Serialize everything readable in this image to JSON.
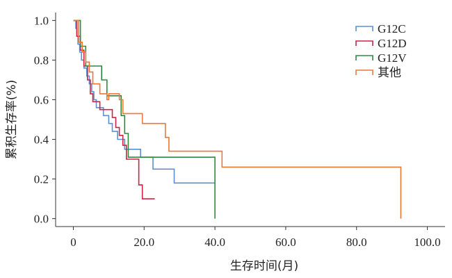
{
  "chart_data": {
    "type": "line",
    "step": true,
    "xlabel": "生存时间(月)",
    "ylabel": "累积生存率(%)",
    "xlim": [
      -5,
      105
    ],
    "ylim": [
      -0.04,
      1.04
    ],
    "x_ticks": [
      0,
      20,
      40,
      60,
      80,
      100
    ],
    "x_tick_labels": [
      "0",
      "20.0",
      "40.0",
      "60.0",
      "80.0",
      "100.0"
    ],
    "y_ticks": [
      0,
      0.2,
      0.4,
      0.6,
      0.8,
      1.0
    ],
    "y_tick_labels": [
      "0.0",
      "0.2",
      "0.4",
      "0.6",
      "0.8",
      "1.0"
    ],
    "legend_position": "top-right",
    "grid": false,
    "series": [
      {
        "name": "G12C",
        "color": "#5b8fcf",
        "points": [
          [
            0,
            1.0
          ],
          [
            0.7,
            1.0
          ],
          [
            0.7,
            0.96
          ],
          [
            1.0,
            0.96
          ],
          [
            1.0,
            0.92
          ],
          [
            1.3,
            0.92
          ],
          [
            1.3,
            0.88
          ],
          [
            1.8,
            0.88
          ],
          [
            1.8,
            0.84
          ],
          [
            2.3,
            0.84
          ],
          [
            2.3,
            0.8
          ],
          [
            3.0,
            0.8
          ],
          [
            3.0,
            0.76
          ],
          [
            3.8,
            0.76
          ],
          [
            3.8,
            0.72
          ],
          [
            4.5,
            0.72
          ],
          [
            4.5,
            0.68
          ],
          [
            5.2,
            0.68
          ],
          [
            5.2,
            0.64
          ],
          [
            5.8,
            0.64
          ],
          [
            5.8,
            0.6
          ],
          [
            6.5,
            0.6
          ],
          [
            6.5,
            0.56
          ],
          [
            8.5,
            0.56
          ],
          [
            8.5,
            0.52
          ],
          [
            10.0,
            0.52
          ],
          [
            10.0,
            0.48
          ],
          [
            11.0,
            0.48
          ],
          [
            11.0,
            0.44
          ],
          [
            12.5,
            0.44
          ],
          [
            12.5,
            0.4
          ],
          [
            14.5,
            0.4
          ],
          [
            14.5,
            0.35
          ],
          [
            19.0,
            0.35
          ],
          [
            19.0,
            0.31
          ],
          [
            22.5,
            0.31
          ],
          [
            22.5,
            0.25
          ],
          [
            28.5,
            0.25
          ],
          [
            28.5,
            0.18
          ],
          [
            40.0,
            0.18
          ]
        ]
      },
      {
        "name": "G12D",
        "color": "#cc2244",
        "points": [
          [
            0,
            1.0
          ],
          [
            1.0,
            1.0
          ],
          [
            1.0,
            0.92
          ],
          [
            2.0,
            0.92
          ],
          [
            2.0,
            0.85
          ],
          [
            3.0,
            0.85
          ],
          [
            3.0,
            0.77
          ],
          [
            4.0,
            0.77
          ],
          [
            4.0,
            0.7
          ],
          [
            4.8,
            0.7
          ],
          [
            4.8,
            0.63
          ],
          [
            5.5,
            0.63
          ],
          [
            5.5,
            0.59
          ],
          [
            7.5,
            0.59
          ],
          [
            7.5,
            0.55
          ],
          [
            11.0,
            0.55
          ],
          [
            11.0,
            0.51
          ],
          [
            12.0,
            0.51
          ],
          [
            12.0,
            0.46
          ],
          [
            13.0,
            0.46
          ],
          [
            13.0,
            0.42
          ],
          [
            14.0,
            0.42
          ],
          [
            14.0,
            0.37
          ],
          [
            15.0,
            0.37
          ],
          [
            15.0,
            0.3
          ],
          [
            18.5,
            0.3
          ],
          [
            18.5,
            0.17
          ],
          [
            19.5,
            0.17
          ],
          [
            19.5,
            0.1
          ],
          [
            23.0,
            0.1
          ]
        ]
      },
      {
        "name": "G12V",
        "color": "#2d8a3c",
        "points": [
          [
            0,
            1.0
          ],
          [
            2.0,
            1.0
          ],
          [
            2.0,
            0.87
          ],
          [
            3.5,
            0.87
          ],
          [
            3.5,
            0.77
          ],
          [
            8.0,
            0.77
          ],
          [
            8.0,
            0.7
          ],
          [
            9.5,
            0.7
          ],
          [
            9.5,
            0.62
          ],
          [
            13.5,
            0.62
          ],
          [
            13.5,
            0.52
          ],
          [
            14.5,
            0.52
          ],
          [
            14.5,
            0.43
          ],
          [
            15.5,
            0.43
          ],
          [
            15.5,
            0.31
          ],
          [
            40.0,
            0.31
          ],
          [
            40.0,
            0.0
          ]
        ]
      },
      {
        "name": "其他",
        "color": "#ee7733",
        "points": [
          [
            0,
            1.0
          ],
          [
            1.5,
            1.0
          ],
          [
            1.5,
            0.89
          ],
          [
            2.5,
            0.89
          ],
          [
            2.5,
            0.84
          ],
          [
            3.5,
            0.84
          ],
          [
            3.5,
            0.79
          ],
          [
            4.5,
            0.79
          ],
          [
            4.5,
            0.74
          ],
          [
            5.5,
            0.74
          ],
          [
            5.5,
            0.68
          ],
          [
            7.5,
            0.68
          ],
          [
            7.5,
            0.63
          ],
          [
            9.5,
            0.63
          ],
          [
            9.5,
            0.6
          ],
          [
            10.0,
            0.6
          ],
          [
            10.0,
            0.63
          ],
          [
            13.0,
            0.63
          ],
          [
            13.0,
            0.6
          ],
          [
            14.0,
            0.6
          ],
          [
            14.0,
            0.53
          ],
          [
            19.5,
            0.53
          ],
          [
            19.5,
            0.48
          ],
          [
            26.0,
            0.48
          ],
          [
            26.0,
            0.41
          ],
          [
            27.0,
            0.41
          ],
          [
            27.0,
            0.34
          ],
          [
            42.0,
            0.34
          ],
          [
            42.0,
            0.26
          ],
          [
            92.5,
            0.26
          ],
          [
            92.5,
            0.0
          ]
        ]
      }
    ]
  }
}
